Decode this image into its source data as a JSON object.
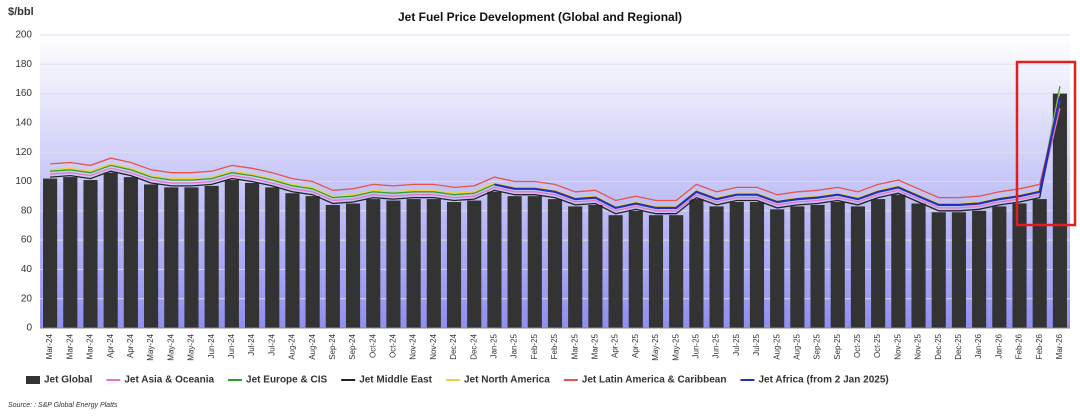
{
  "chart_data": {
    "type": "bar",
    "title": "Jet Fuel Price Development (Global and Regional)",
    "y_label": "$/bbl",
    "source": "Source: : S&P Global Energy Platts",
    "categories": [
      "Mar-24",
      "Mar-24",
      "Mar-24",
      "Apr-24",
      "Apr-24",
      "May-24",
      "May-24",
      "May-24",
      "Jun-24",
      "Jun-24",
      "Jul-24",
      "Jul-24",
      "Aug-24",
      "Aug-24",
      "Sep-24",
      "Sep-24",
      "Oct-24",
      "Oct-24",
      "Nov-24",
      "Nov-24",
      "Dec-24",
      "Dec-24",
      "Jan-25",
      "Jan-25",
      "Feb-25",
      "Feb-25",
      "Mar-25",
      "Mar-25",
      "Apr-25",
      "Apr-25",
      "May-25",
      "May-25",
      "Jun-25",
      "Jun-25",
      "Jul-25",
      "Jul-25",
      "Aug-25",
      "Aug-25",
      "Sep-25",
      "Sep-25",
      "Oct-25",
      "Oct-25",
      "Nov-25",
      "Nov-25",
      "Dec-25",
      "Dec-25",
      "Jan-26",
      "Jan-26",
      "Feb-26",
      "Feb-26",
      "Mar-26"
    ],
    "series": [
      {
        "name": "Jet Global",
        "type": "bar",
        "color": "#333333",
        "values": [
          102,
          103,
          101,
          106,
          103,
          98,
          96,
          96,
          97,
          101,
          99,
          96,
          92,
          90,
          84,
          85,
          88,
          87,
          88,
          88,
          86,
          87,
          93,
          90,
          90,
          88,
          83,
          84,
          77,
          80,
          77,
          77,
          88,
          83,
          86,
          86,
          81,
          83,
          84,
          86,
          83,
          88,
          91,
          85,
          79,
          79,
          80,
          83,
          85,
          88,
          160
        ]
      },
      {
        "name": "Jet Asia & Oceania",
        "type": "line",
        "color": "#e377c2",
        "values": [
          105,
          106,
          104,
          109,
          106,
          101,
          99,
          99,
          100,
          104,
          102,
          99,
          95,
          93,
          87,
          88,
          91,
          90,
          91,
          91,
          89,
          90,
          96,
          93,
          93,
          91,
          86,
          87,
          80,
          83,
          80,
          80,
          91,
          86,
          89,
          89,
          84,
          86,
          87,
          89,
          86,
          91,
          94,
          88,
          82,
          82,
          83,
          86,
          88,
          91,
          150
        ]
      },
      {
        "name": "Jet Europe & CIS",
        "type": "line",
        "color": "#2ca02c",
        "values": [
          107,
          108,
          106,
          111,
          108,
          103,
          101,
          101,
          102,
          106,
          104,
          101,
          97,
          95,
          89,
          90,
          93,
          92,
          93,
          93,
          91,
          92,
          98,
          95,
          95,
          93,
          88,
          89,
          82,
          85,
          82,
          82,
          93,
          88,
          91,
          91,
          86,
          88,
          89,
          91,
          88,
          93,
          96,
          90,
          84,
          84,
          85,
          88,
          90,
          93,
          165
        ]
      },
      {
        "name": "Jet Middle East",
        "type": "line",
        "color": "#222222",
        "values": [
          103,
          104,
          102,
          107,
          104,
          99,
          97,
          97,
          98,
          102,
          100,
          97,
          93,
          91,
          85,
          86,
          89,
          88,
          89,
          89,
          87,
          88,
          94,
          91,
          91,
          89,
          84,
          85,
          78,
          81,
          78,
          78,
          89,
          84,
          87,
          87,
          82,
          84,
          85,
          87,
          84,
          89,
          92,
          86,
          80,
          80,
          81,
          84,
          86,
          89,
          158
        ]
      },
      {
        "name": "Jet North America",
        "type": "line",
        "color": "#f0d040",
        "values": [
          108,
          109,
          107,
          112,
          109,
          104,
          102,
          102,
          103,
          107,
          105,
          102,
          98,
          96,
          90,
          91,
          94,
          93,
          94,
          94,
          92,
          93,
          99,
          96,
          96,
          94,
          89,
          90,
          83,
          86,
          83,
          83,
          94,
          89,
          92,
          92,
          87,
          89,
          90,
          92,
          89,
          94,
          97,
          91,
          85,
          85,
          86,
          89,
          91,
          94,
          162
        ]
      },
      {
        "name": "Jet Latin America & Caribbean",
        "type": "line",
        "color": "#e8534a",
        "values": [
          112,
          113,
          111,
          116,
          113,
          108,
          106,
          106,
          107,
          111,
          109,
          106,
          102,
          100,
          94,
          95,
          98,
          97,
          98,
          98,
          96,
          97,
          103,
          100,
          100,
          98,
          93,
          94,
          87,
          90,
          87,
          87,
          98,
          93,
          96,
          96,
          91,
          93,
          94,
          96,
          93,
          98,
          101,
          95,
          89,
          89,
          90,
          93,
          95,
          98,
          155
        ]
      },
      {
        "name": "Jet Africa (from 2 Jan 2025)",
        "type": "line",
        "color": "#2030c0",
        "values": [
          null,
          null,
          null,
          null,
          null,
          null,
          null,
          null,
          null,
          null,
          null,
          null,
          null,
          null,
          null,
          null,
          null,
          null,
          null,
          null,
          null,
          null,
          98,
          95,
          95,
          93,
          88,
          89,
          82,
          85,
          82,
          82,
          93,
          88,
          91,
          91,
          86,
          88,
          89,
          91,
          88,
          93,
          96,
          90,
          84,
          84,
          85,
          88,
          90,
          93,
          158
        ]
      }
    ],
    "ylim": [
      0,
      200
    ],
    "yticks": [
      0,
      20,
      40,
      60,
      80,
      100,
      120,
      140,
      160,
      180,
      200
    ],
    "grid": true,
    "legend": "bottom"
  }
}
